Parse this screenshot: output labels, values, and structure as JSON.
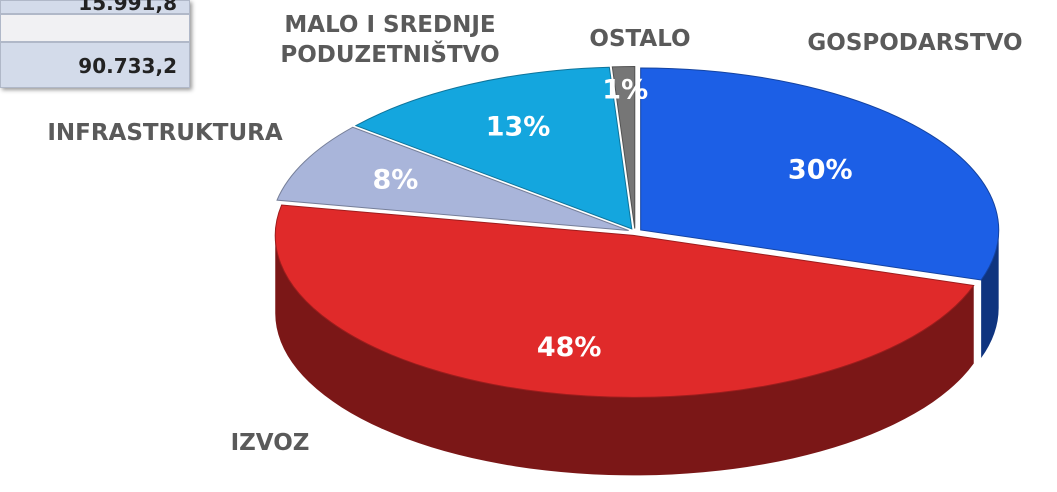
{
  "table": {
    "rows": [
      "15.991,8",
      "90.733,2"
    ]
  },
  "chart_data": {
    "type": "pie",
    "categories": [
      "GOSPODARSTVO",
      "IZVOZ",
      "INFRASTRUKTURA",
      "MALO I SREDNJE PODUZETNIŠTVO",
      "OSTALO"
    ],
    "values": [
      30,
      48,
      8,
      13,
      1
    ],
    "value_labels": [
      "30%",
      "48%",
      "8%",
      "13%",
      "1%"
    ],
    "colors": [
      "#1c5fe6",
      "#e02a2a",
      "#a9b5da",
      "#14a6de",
      "#767676"
    ]
  }
}
